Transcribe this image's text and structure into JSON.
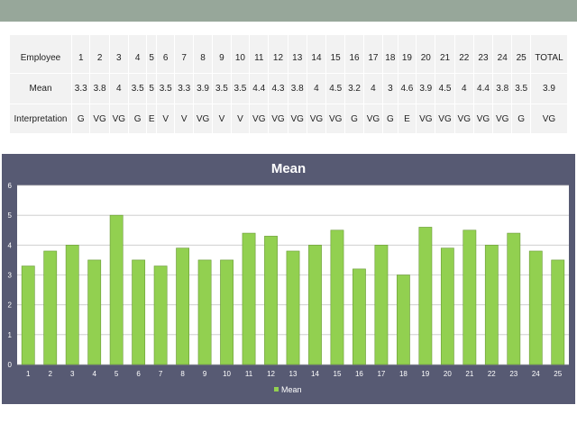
{
  "table": {
    "row_labels": [
      "Employee",
      "Mean",
      "Interpretation"
    ],
    "employees": [
      "1",
      "2",
      "3",
      "4",
      "5",
      "6",
      "7",
      "8",
      "9",
      "10",
      "11",
      "12",
      "13",
      "14",
      "15",
      "16",
      "17",
      "18",
      "19",
      "20",
      "21",
      "22",
      "23",
      "24",
      "25"
    ],
    "total_label": "TOTAL",
    "means": [
      "3.3",
      "3.8",
      "4",
      "3.5",
      "5",
      "3.5",
      "3.3",
      "3.9",
      "3.5",
      "3.5",
      "4.4",
      "4.3",
      "3.8",
      "4",
      "4.5",
      "3.2",
      "4",
      "3",
      "4.6",
      "3.9",
      "4.5",
      "4",
      "4.4",
      "3.8",
      "3.5"
    ],
    "mean_total": "3.9",
    "interpretations": [
      "G",
      "VG",
      "VG",
      "G",
      "E",
      "V",
      "V",
      "VG",
      "V",
      "V",
      "VG",
      "VG",
      "VG",
      "VG",
      "VG",
      "G",
      "VG",
      "G",
      "E",
      "VG",
      "VG",
      "VG",
      "VG",
      "VG",
      "G"
    ],
    "interpretation_total": "VG"
  },
  "colors": {
    "top_band": "#97a79a",
    "table_cell": "#f2f2f2",
    "chart_background": "#575a73",
    "bar_fill": "#92d050",
    "bar_stroke": "#6a9a38"
  },
  "chart_data": {
    "type": "bar",
    "title": "Mean",
    "categories": [
      "1",
      "2",
      "3",
      "4",
      "5",
      "6",
      "7",
      "8",
      "9",
      "10",
      "11",
      "12",
      "13",
      "14",
      "15",
      "16",
      "17",
      "18",
      "19",
      "20",
      "21",
      "22",
      "23",
      "24",
      "25"
    ],
    "series": [
      {
        "name": "Mean",
        "values": [
          3.3,
          3.8,
          4,
          3.5,
          5,
          3.5,
          3.3,
          3.9,
          3.5,
          3.5,
          4.4,
          4.3,
          3.8,
          4,
          4.5,
          3.2,
          4,
          3,
          4.6,
          3.9,
          4.5,
          4,
          4.4,
          3.8,
          3.5
        ]
      }
    ],
    "y_ticks": [
      "0",
      "1",
      "2",
      "3",
      "4",
      "5",
      "6"
    ],
    "ylim": [
      0,
      6
    ],
    "grid": true,
    "legend_position": "bottom"
  }
}
